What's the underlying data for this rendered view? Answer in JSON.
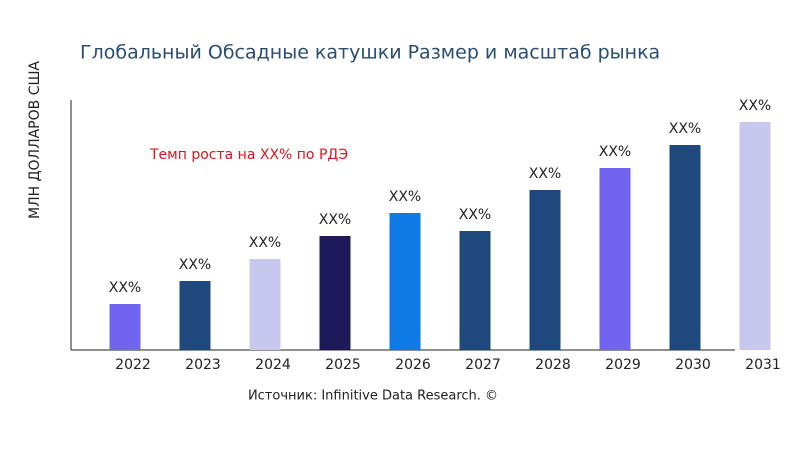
{
  "chart_data": {
    "type": "bar",
    "title": "Глобальный Обсадные катушки Размер и масштаб рынка",
    "y_label": "МЛН ДОЛЛАРОВ США",
    "annotation": "Темп роста на XX% по РДЭ",
    "source": "Источник: Infinitive Data Research. ©",
    "categories": [
      "2022",
      "2023",
      "2024",
      "2025",
      "2026",
      "2027",
      "2028",
      "2029",
      "2030",
      "2031"
    ],
    "values": [
      46,
      69,
      91,
      114,
      137,
      119,
      160,
      182,
      205,
      228
    ],
    "value_labels": [
      "XX%",
      "XX%",
      "XX%",
      "XX%",
      "XX%",
      "XX%",
      "XX%",
      "XX%",
      "XX%",
      "XX%"
    ],
    "colors": [
      "#7165f0",
      "#1f497d",
      "#c8c8ee",
      "#1e1a5a",
      "#0f7ae5",
      "#1f497d",
      "#1f497d",
      "#7165f0",
      "#1f497d",
      "#c8c8ee"
    ],
    "ylim": [
      0,
      250
    ]
  }
}
